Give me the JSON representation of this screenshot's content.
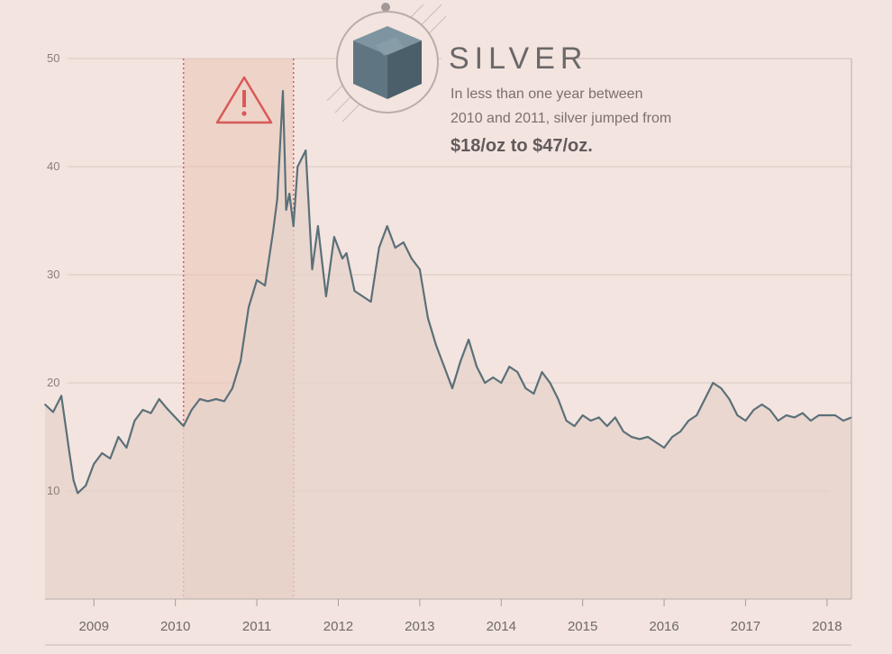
{
  "annotation": {
    "title": "SILVER",
    "line1": "In less than one year between",
    "line2": "2010 and 2011, silver jumped from",
    "highlight": "$18/oz to $47/oz."
  },
  "colors": {
    "background": "#f3e4df",
    "line": "#5b7078",
    "area_fill": "#e6d3cb",
    "highlight_band": "#e9c4b6",
    "highlight_border": "#d95a57",
    "grid": "#d8c8c2"
  },
  "chart_data": {
    "type": "line",
    "ylim": [
      0,
      50
    ],
    "xlim": [
      2008.4,
      2018.3
    ],
    "y_ticks": [
      10,
      20,
      30,
      40,
      50
    ],
    "x_ticks": [
      2009,
      2010,
      2011,
      2012,
      2013,
      2014,
      2015,
      2016,
      2017,
      2018
    ],
    "highlight_range": [
      2010.1,
      2011.45
    ],
    "grid": true,
    "series": [
      {
        "x": [
          2008.4,
          2008.5,
          2008.6,
          2008.7,
          2008.75,
          2008.8,
          2008.9,
          2009.0,
          2009.1,
          2009.2,
          2009.3,
          2009.4,
          2009.5,
          2009.6,
          2009.7,
          2009.8,
          2009.9,
          2010.0,
          2010.1,
          2010.2,
          2010.3,
          2010.4,
          2010.5,
          2010.6,
          2010.7,
          2010.8,
          2010.9,
          2011.0,
          2011.1,
          2011.2,
          2011.25,
          2011.32,
          2011.36,
          2011.4,
          2011.45,
          2011.5,
          2011.6,
          2011.68,
          2011.75,
          2011.85,
          2011.95,
          2012.05,
          2012.1,
          2012.2,
          2012.3,
          2012.4,
          2012.5,
          2012.6,
          2012.7,
          2012.8,
          2012.9,
          2013.0,
          2013.1,
          2013.2,
          2013.3,
          2013.4,
          2013.5,
          2013.6,
          2013.7,
          2013.8,
          2013.9,
          2014.0,
          2014.1,
          2014.2,
          2014.3,
          2014.4,
          2014.5,
          2014.6,
          2014.7,
          2014.8,
          2014.9,
          2015.0,
          2015.1,
          2015.2,
          2015.3,
          2015.4,
          2015.5,
          2015.6,
          2015.7,
          2015.8,
          2015.9,
          2016.0,
          2016.1,
          2016.2,
          2016.3,
          2016.4,
          2016.5,
          2016.6,
          2016.7,
          2016.8,
          2016.9,
          2017.0,
          2017.1,
          2017.2,
          2017.3,
          2017.4,
          2017.5,
          2017.6,
          2017.7,
          2017.8,
          2017.9,
          2018.0,
          2018.1,
          2018.2,
          2018.3
        ],
        "y": [
          18.0,
          17.3,
          18.8,
          13.5,
          11.0,
          9.8,
          10.5,
          12.5,
          13.5,
          13.0,
          15.0,
          14.0,
          16.5,
          17.5,
          17.2,
          18.5,
          17.6,
          16.8,
          16.0,
          17.5,
          18.5,
          18.3,
          18.5,
          18.3,
          19.5,
          22.0,
          27.0,
          29.5,
          29.0,
          34.0,
          37.0,
          47.0,
          36.0,
          37.5,
          34.5,
          40.0,
          41.5,
          30.5,
          34.5,
          28.0,
          33.5,
          31.5,
          32.0,
          28.5,
          28.0,
          27.5,
          32.5,
          34.5,
          32.5,
          33.0,
          31.5,
          30.5,
          26.0,
          23.5,
          21.5,
          19.5,
          22.0,
          24.0,
          21.5,
          20.0,
          20.5,
          20.0,
          21.5,
          21.0,
          19.5,
          19.0,
          21.0,
          20.0,
          18.5,
          16.5,
          16.0,
          17.0,
          16.5,
          16.8,
          16.0,
          16.8,
          15.5,
          15.0,
          14.8,
          15.0,
          14.5,
          14.0,
          15.0,
          15.5,
          16.5,
          17.0,
          18.5,
          20.0,
          19.5,
          18.5,
          17.0,
          16.5,
          17.5,
          18.0,
          17.5,
          16.5,
          17.0,
          16.8,
          17.2,
          16.5,
          17.0,
          17.0,
          17.0,
          16.5,
          16.8
        ]
      }
    ]
  }
}
